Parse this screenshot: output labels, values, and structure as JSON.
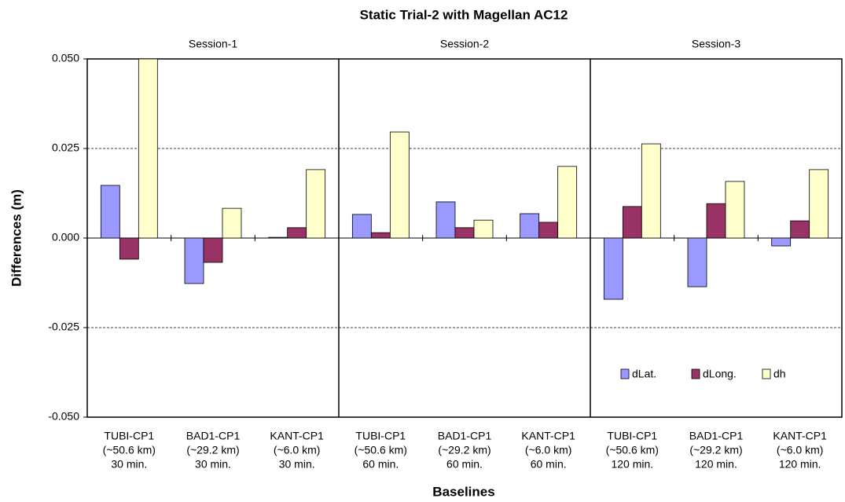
{
  "chart_data": {
    "type": "bar",
    "title": "Static Trial-2 with Magellan AC12",
    "x_label": "Baselines",
    "y_label": "Differences (m)",
    "sessions": [
      "Session-1",
      "Session-2",
      "Session-3"
    ],
    "categories": [
      [
        "TUBI-CP1",
        "(~50.6 km)",
        "30 min."
      ],
      [
        "BAD1-CP1",
        "(~29.2 km)",
        "30 min."
      ],
      [
        "KANT-CP1",
        "(~6.0 km)",
        "30 min."
      ],
      [
        "TUBI-CP1",
        "(~50.6 km)",
        "60 min."
      ],
      [
        "BAD1-CP1",
        "(~29.2 km)",
        "60 min."
      ],
      [
        "KANT-CP1",
        "(~6.0 km)",
        "60 min."
      ],
      [
        "TUBI-CP1",
        "(~50.6 km)",
        "120 min."
      ],
      [
        "BAD1-CP1",
        "(~29.2 km)",
        "120 min."
      ],
      [
        "KANT-CP1",
        "(~6.0 km)",
        "120 min."
      ]
    ],
    "series": [
      {
        "name": "dLat.",
        "color": "#9999ff",
        "values": [
          0.0147,
          -0.0127,
          0.0002,
          0.0066,
          0.0101,
          0.0068,
          -0.0171,
          -0.0136,
          -0.0022
        ]
      },
      {
        "name": "dLong.",
        "color": "#993366",
        "values": [
          -0.0059,
          -0.0068,
          0.0029,
          0.0015,
          0.0029,
          0.0044,
          0.0088,
          0.0096,
          0.0048
        ]
      },
      {
        "name": "dh",
        "color": "#ffffcc",
        "values": [
          0.05,
          0.0083,
          0.0191,
          0.0296,
          0.005,
          0.02,
          0.0263,
          0.0158,
          0.0191
        ]
      }
    ],
    "ylim": [
      -0.05,
      0.05
    ],
    "yticks": [
      {
        "value": -0.05,
        "label": "-0.050"
      },
      {
        "value": -0.025,
        "label": "-0.025"
      },
      {
        "value": 0,
        "label": "0.000"
      },
      {
        "value": 0.025,
        "label": "0.025"
      },
      {
        "value": 0.05,
        "label": "0.050"
      }
    ],
    "grid": true,
    "legend_position": "lower right"
  }
}
